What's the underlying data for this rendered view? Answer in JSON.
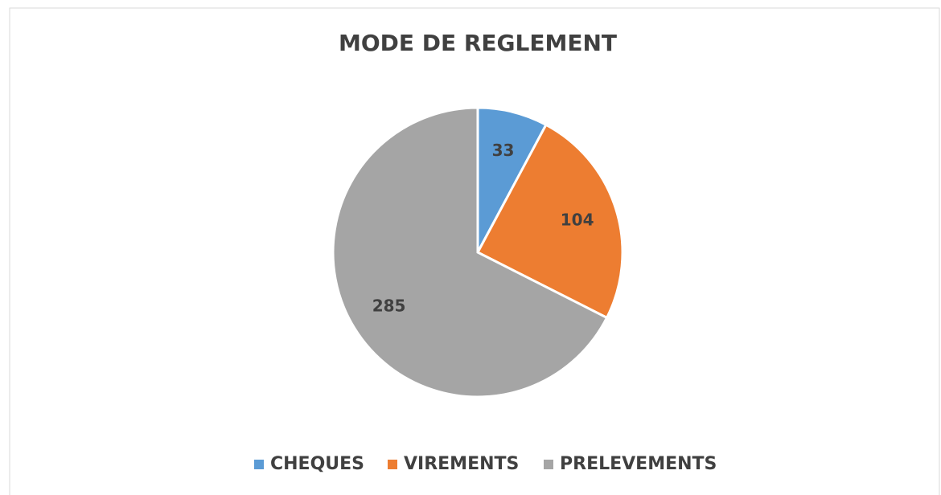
{
  "chart_data": {
    "type": "pie",
    "title": "MODE DE REGLEMENT",
    "categories": [
      "CHEQUES",
      "VIREMENTS",
      "PRELEVEMENTS"
    ],
    "values": [
      33,
      104,
      285
    ],
    "colors": [
      "#5b9bd5",
      "#ed7d31",
      "#a5a5a5"
    ],
    "legend": "bottom"
  }
}
